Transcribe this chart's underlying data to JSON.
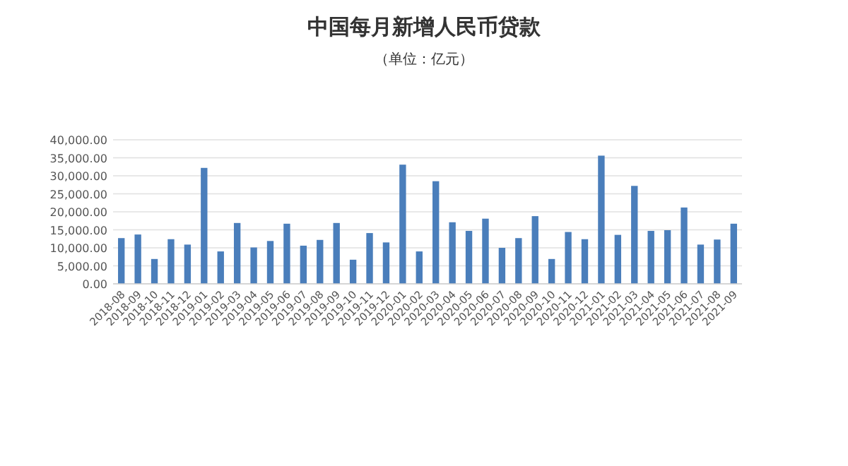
{
  "chart_data": {
    "type": "bar",
    "title": "中国每月新增人民币贷款",
    "subtitle": "（单位：亿元）",
    "categories": [
      "2018-08",
      "2018-09",
      "2018-10",
      "2018-11",
      "2018-12",
      "2019-01",
      "2019-02",
      "2019-03",
      "2019-04",
      "2019-05",
      "2019-06",
      "2019-07",
      "2019-08",
      "2019-09",
      "2019-10",
      "2019-11",
      "2019-12",
      "2020-01",
      "2020-02",
      "2020-03",
      "2020-04",
      "2020-05",
      "2020-06",
      "2020-07",
      "2020-08",
      "2020-09",
      "2020-10",
      "2020-11",
      "2020-12",
      "2021-01",
      "2021-02",
      "2021-03",
      "2021-04",
      "2021-05",
      "2021-06",
      "2021-07",
      "2021-08",
      "2021-09"
    ],
    "values": [
      12700,
      13700,
      6900,
      12400,
      10900,
      32200,
      9000,
      16900,
      10100,
      11900,
      16700,
      10600,
      12200,
      16900,
      6700,
      14100,
      11500,
      33100,
      9000,
      28500,
      17100,
      14700,
      18100,
      10000,
      12700,
      18800,
      6900,
      14400,
      12400,
      35600,
      13600,
      27200,
      14700,
      14900,
      21200,
      10900,
      12300,
      16700
    ],
    "color": "#4a7ebb",
    "ylim": [
      0,
      40000
    ],
    "yticks": [
      {
        "value": 0,
        "label": "0.00"
      },
      {
        "value": 5000,
        "label": "5,000.00"
      },
      {
        "value": 10000,
        "label": "10,000.00"
      },
      {
        "value": 15000,
        "label": "15,000.00"
      },
      {
        "value": 20000,
        "label": "20,000.00"
      },
      {
        "value": 25000,
        "label": "25,000.00"
      },
      {
        "value": 30000,
        "label": "30,000.00"
      },
      {
        "value": 35000,
        "label": "35,000.00"
      },
      {
        "value": 40000,
        "label": "40,000.00"
      }
    ],
    "grid": "y"
  }
}
